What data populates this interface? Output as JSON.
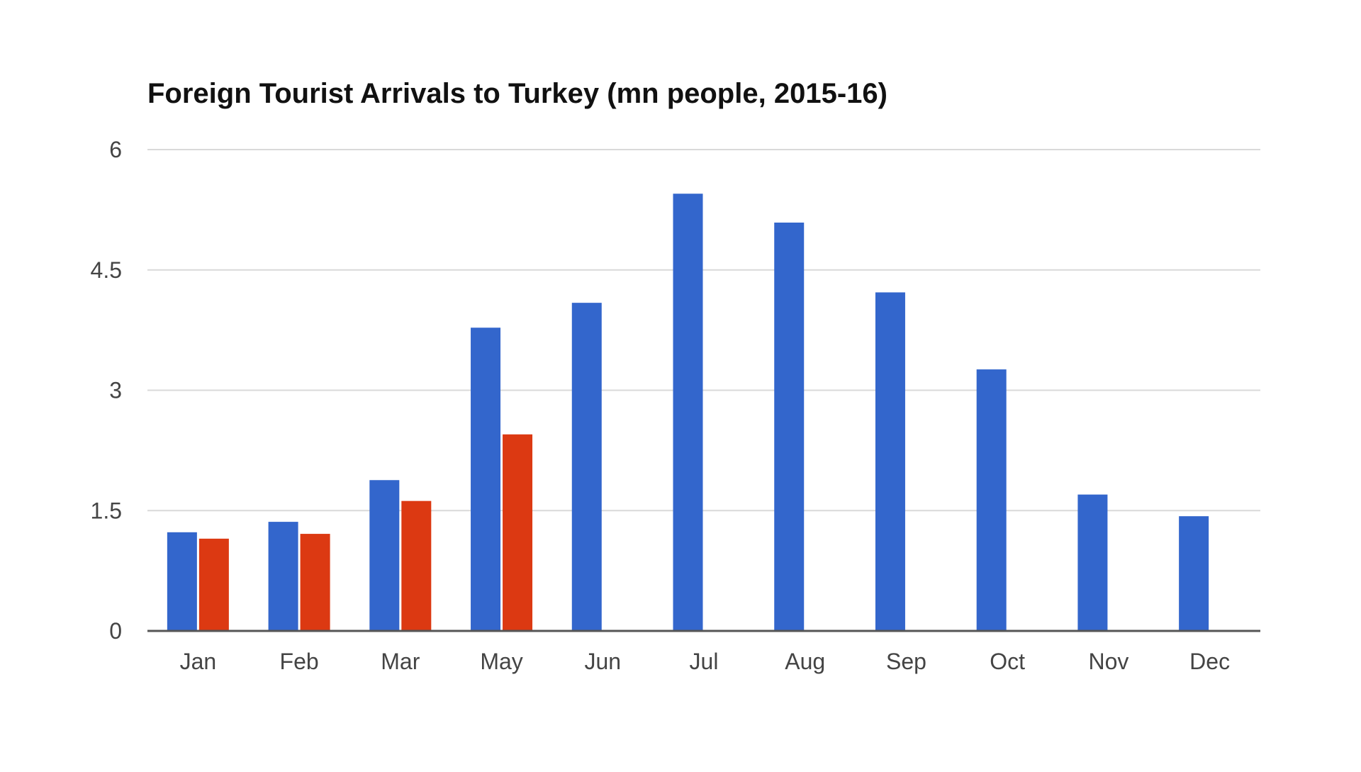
{
  "chart_data": {
    "type": "bar",
    "title": "Foreign Tourist Arrivals to Turkey (mn people, 2015-16)",
    "xlabel": "",
    "ylabel": "",
    "categories": [
      "Jan",
      "Feb",
      "Mar",
      "May",
      "Jun",
      "Jul",
      "Aug",
      "Sep",
      "Oct",
      "Nov",
      "Dec"
    ],
    "series": [
      {
        "color": "#3366cc",
        "values": [
          1.23,
          1.36,
          1.88,
          3.78,
          4.09,
          5.45,
          5.09,
          4.22,
          3.26,
          1.7,
          1.43
        ]
      },
      {
        "color": "#dc3912",
        "values": [
          1.15,
          1.21,
          1.62,
          2.45,
          null,
          null,
          null,
          null,
          null,
          null,
          null
        ]
      }
    ],
    "ylim": [
      0,
      6
    ],
    "yticks": [
      "0",
      "1.5",
      "3",
      "4.5",
      "6"
    ],
    "grid": true,
    "legend": "none"
  }
}
